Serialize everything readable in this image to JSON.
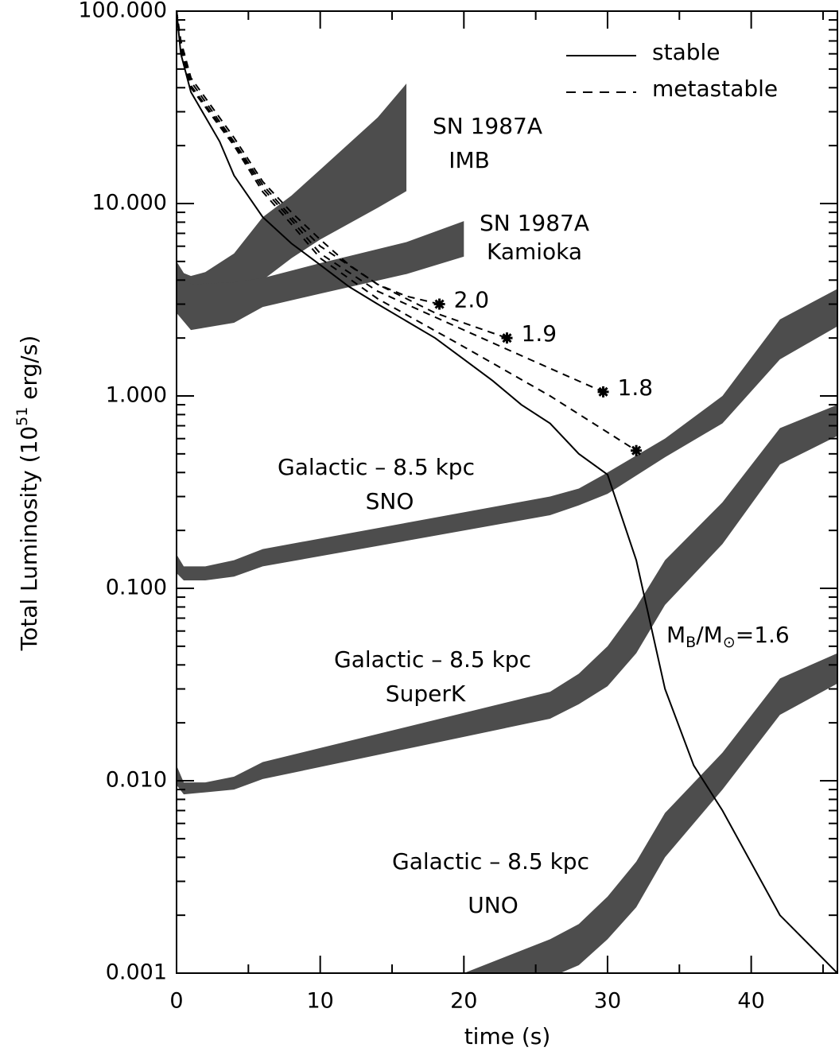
{
  "chart_data": {
    "type": "line",
    "log_y": true,
    "xlabel": "time (s)",
    "ylabel": [
      "Total Luminosity (10",
      "51",
      " erg/s)"
    ],
    "xlim": [
      0,
      46
    ],
    "ylim": [
      0.001,
      100
    ],
    "xticks": [
      0,
      10,
      20,
      30,
      40
    ],
    "xminorticks": [
      5,
      15,
      25,
      35,
      45
    ],
    "yticks": [
      {
        "value": 100,
        "label": "100.000"
      },
      {
        "value": 10,
        "label": "10.000"
      },
      {
        "value": 1,
        "label": "1.000"
      },
      {
        "value": 0.1,
        "label": "0.100"
      },
      {
        "value": 0.01,
        "label": "0.010"
      },
      {
        "value": 0.001,
        "label": "0.001"
      }
    ],
    "yminorticks": [
      0.002,
      0.003,
      0.004,
      0.005,
      0.006,
      0.007,
      0.008,
      0.009,
      0.02,
      0.03,
      0.04,
      0.05,
      0.06,
      0.07,
      0.08,
      0.09,
      0.2,
      0.3,
      0.4,
      0.5,
      0.6,
      0.7,
      0.8,
      0.9,
      2,
      3,
      4,
      5,
      6,
      7,
      8,
      9,
      20,
      30,
      40,
      50,
      60,
      70,
      80,
      90
    ],
    "legend": "upper right",
    "bands": [
      {
        "label": [
          "SN 1987A",
          "IMB"
        ],
        "color": "#4d4d4d",
        "x": [
          0,
          1,
          2,
          4,
          6,
          8,
          10,
          14,
          16
        ],
        "upper": [
          4.5,
          4.2,
          4.4,
          5.5,
          8.5,
          11,
          15,
          28,
          42
        ],
        "lower": [
          3.2,
          3.0,
          3.1,
          3.3,
          4.0,
          5.2,
          6.5,
          9.5,
          11.6
        ]
      },
      {
        "label": [
          "SN 1987A",
          "Kamioka"
        ],
        "color": "#4d4d4d",
        "x": [
          0,
          1,
          4,
          6,
          10,
          16,
          20
        ],
        "upper": [
          5,
          3.8,
          3.9,
          4.1,
          4.9,
          6.3,
          8.1
        ],
        "lower": [
          2.7,
          2.2,
          2.4,
          2.9,
          3.4,
          4.3,
          5.3
        ]
      },
      {
        "label": [
          "Galactic – 8.5 kpc",
          "SNO"
        ],
        "color": "#4d4d4d",
        "x": [
          0,
          0.5,
          2,
          4,
          6,
          26,
          28,
          30,
          34,
          38,
          42,
          46
        ],
        "upper": [
          0.15,
          0.13,
          0.13,
          0.14,
          0.16,
          0.3,
          0.33,
          0.4,
          0.6,
          1.0,
          2.5,
          3.6
        ],
        "lower": [
          0.12,
          0.11,
          0.11,
          0.115,
          0.13,
          0.24,
          0.27,
          0.31,
          0.48,
          0.72,
          1.55,
          2.3
        ]
      },
      {
        "label": [
          "Galactic – 8.5 kpc",
          "SuperK"
        ],
        "color": "#4d4d4d",
        "x": [
          0,
          0.5,
          2,
          4,
          6,
          26,
          28,
          30,
          32,
          34,
          38,
          42,
          46
        ],
        "upper": [
          0.012,
          0.0098,
          0.0098,
          0.0105,
          0.0125,
          0.029,
          0.036,
          0.05,
          0.08,
          0.14,
          0.28,
          0.68,
          0.9
        ],
        "lower": [
          0.0095,
          0.0085,
          0.0087,
          0.009,
          0.0102,
          0.021,
          0.025,
          0.031,
          0.046,
          0.082,
          0.17,
          0.44,
          0.62
        ]
      },
      {
        "label": [
          "Galactic – 8.5 kpc",
          "UNO"
        ],
        "color": "#4d4d4d",
        "x": [
          20,
          26,
          28,
          30,
          32,
          34,
          38,
          42,
          46
        ],
        "upper": [
          0.001,
          0.0015,
          0.0018,
          0.0025,
          0.0038,
          0.0068,
          0.014,
          0.034,
          0.046
        ],
        "lower": [
          0.001,
          0.00095,
          0.0011,
          0.0015,
          0.0022,
          0.004,
          0.009,
          0.022,
          0.032
        ]
      }
    ],
    "series": [
      {
        "name": "stable",
        "dash": false,
        "color": "#000000",
        "curves": [
          {
            "label": [
              "M",
              "B",
              "/M",
              "⊙",
              "=1.6"
            ],
            "x": [
              0,
              0.3,
              1,
              3,
              4,
              6,
              8,
              10,
              12,
              14,
              18,
              20,
              22,
              24,
              26,
              28,
              30,
              32,
              34,
              36,
              38,
              42,
              46
            ],
            "values": [
              100,
              60,
              38,
              21,
              14,
              8.5,
              6.2,
              4.8,
              3.7,
              3.0,
              2.0,
              1.55,
              1.2,
              0.9,
              0.72,
              0.5,
              0.39,
              0.14,
              0.03,
              0.012,
              0.007,
              0.002,
              0.001
            ]
          }
        ]
      },
      {
        "name": "metastable",
        "dash": true,
        "color": "#000000",
        "curves": [
          {
            "label": "2.0",
            "x": [
              0,
              0.3,
              1,
              4,
              6,
              8,
              10,
              12,
              14,
              16,
              18.3
            ],
            "values": [
              100,
              70,
              45,
              22,
              13,
              9,
              6.5,
              4.8,
              3.8,
              3.3,
              3.0
            ]
          },
          {
            "label": "1.9",
            "x": [
              0,
              0.3,
              1,
              4,
              6,
              8,
              10,
              14,
              18,
              23
            ],
            "values": [
              100,
              68,
              43,
              21,
              12.5,
              8.5,
              6.0,
              3.8,
              2.7,
              2.0
            ]
          },
          {
            "label": "1.8",
            "x": [
              0,
              0.3,
              1,
              4,
              6,
              8,
              10,
              14,
              20,
              25,
              29.7
            ],
            "values": [
              100,
              66,
              41,
              20.5,
              12,
              8.2,
              5.5,
              3.5,
              2.2,
              1.5,
              1.05
            ]
          },
          {
            "label": null,
            "x": [
              0,
              0.3,
              1,
              4,
              6,
              8,
              10,
              14,
              20,
              26,
              32
            ],
            "values": [
              100,
              64,
              40,
              20,
              11.5,
              7.8,
              5.2,
              3.2,
              1.8,
              1.0,
              0.52
            ]
          }
        ]
      }
    ]
  }
}
